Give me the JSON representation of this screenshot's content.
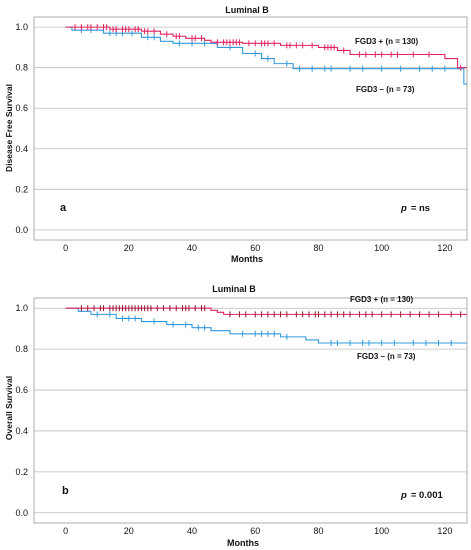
{
  "chart_data": [
    {
      "type": "line",
      "title": "Luminal B",
      "xlabel": "Months",
      "ylabel": "Disease Free Survival",
      "xlim": [
        -10,
        127
      ],
      "ylim": [
        -0.05,
        1.05
      ],
      "xticks": [
        "0",
        "20",
        "40",
        "60",
        "80",
        "100",
        "120"
      ],
      "yticks": [
        "0.0",
        "0.2",
        "0.4",
        "0.6",
        "0.8",
        "1.0"
      ],
      "grid": "horizontal",
      "panel_letter": "a",
      "p_label": "p",
      "p_value": "= ns",
      "series": [
        {
          "name": "FGD3 + (n = 130)",
          "color": "#e0245e",
          "steps": [
            [
              0,
              1.0
            ],
            [
              14,
              0.99
            ],
            [
              24,
              0.98
            ],
            [
              30,
              0.965
            ],
            [
              34,
              0.955
            ],
            [
              38,
              0.945
            ],
            [
              44,
              0.935
            ],
            [
              46,
              0.925
            ],
            [
              56,
              0.92
            ],
            [
              68,
              0.91
            ],
            [
              80,
              0.9
            ],
            [
              86,
              0.885
            ],
            [
              90,
              0.865
            ],
            [
              120,
              0.845
            ],
            [
              124,
              0.8
            ],
            [
              127,
              0.8
            ]
          ],
          "censor": [
            3,
            5,
            7,
            8,
            10,
            12,
            13,
            15,
            16,
            18,
            19,
            20,
            22,
            23,
            25,
            26,
            28,
            32,
            35,
            36,
            40,
            41,
            43,
            48,
            50,
            51,
            52,
            53,
            54,
            55,
            58,
            60,
            62,
            63,
            64,
            66,
            70,
            71,
            73,
            75,
            78,
            82,
            83,
            84,
            85,
            88,
            93,
            95,
            98,
            100,
            103,
            105,
            110,
            115,
            125
          ]
        },
        {
          "name": "FGD3 – (n = 73)",
          "color": "#3399dd",
          "steps": [
            [
              0,
              1.0
            ],
            [
              2,
              0.985
            ],
            [
              12,
              0.97
            ],
            [
              24,
              0.95
            ],
            [
              30,
              0.93
            ],
            [
              34,
              0.92
            ],
            [
              48,
              0.9
            ],
            [
              56,
              0.87
            ],
            [
              62,
              0.845
            ],
            [
              66,
              0.82
            ],
            [
              72,
              0.795
            ],
            [
              126,
              0.72
            ],
            [
              127,
              0.72
            ]
          ],
          "censor": [
            5,
            8,
            14,
            16,
            18,
            21,
            26,
            28,
            36,
            40,
            44,
            52,
            60,
            64,
            70,
            74,
            78,
            82,
            84,
            90,
            94,
            100,
            106,
            112,
            116,
            120
          ]
        }
      ]
    },
    {
      "type": "line",
      "title": "Luminal B",
      "xlabel": "Months",
      "ylabel": "Overall Survival",
      "xlim": [
        -10,
        127
      ],
      "ylim": [
        -0.05,
        1.05
      ],
      "xticks": [
        "0",
        "20",
        "40",
        "60",
        "80",
        "100",
        "120"
      ],
      "yticks": [
        "0.0",
        "0.2",
        "0.4",
        "0.6",
        "0.8",
        "1.0"
      ],
      "grid": "horizontal",
      "panel_letter": "b",
      "p_label": "p",
      "p_value": "= 0.001",
      "series": [
        {
          "name": "FGD3 + (n = 130)",
          "color": "#e0245e",
          "censor_color": "#8b1a2f",
          "steps": [
            [
              0,
              1.0
            ],
            [
              46,
              0.99
            ],
            [
              48,
              0.98
            ],
            [
              50,
              0.97
            ],
            [
              127,
              0.97
            ]
          ],
          "censor": [
            5,
            7,
            9,
            11,
            12,
            14,
            15,
            16,
            17,
            18,
            19,
            20,
            21,
            22,
            23,
            24,
            25,
            26,
            27,
            29,
            31,
            33,
            35,
            37,
            38,
            39,
            41,
            43,
            44,
            52,
            55,
            57,
            60,
            62,
            64,
            66,
            68,
            70,
            73,
            75,
            77,
            79,
            80,
            82,
            84,
            86,
            88,
            90,
            93,
            95,
            97,
            100,
            103,
            106,
            109,
            112,
            115,
            118,
            122,
            125
          ]
        },
        {
          "name": "FGD3 – (n = 73)",
          "color": "#3399dd",
          "steps": [
            [
              0,
              1.0
            ],
            [
              4,
              0.985
            ],
            [
              8,
              0.97
            ],
            [
              16,
              0.95
            ],
            [
              24,
              0.935
            ],
            [
              32,
              0.92
            ],
            [
              40,
              0.905
            ],
            [
              46,
              0.89
            ],
            [
              52,
              0.875
            ],
            [
              68,
              0.86
            ],
            [
              76,
              0.845
            ],
            [
              80,
              0.83
            ],
            [
              127,
              0.83
            ]
          ],
          "censor": [
            10,
            14,
            18,
            20,
            22,
            28,
            34,
            38,
            42,
            44,
            56,
            60,
            62,
            64,
            66,
            70,
            84,
            86,
            90,
            94,
            96,
            100,
            104,
            110,
            114,
            118,
            122
          ]
        }
      ]
    }
  ]
}
